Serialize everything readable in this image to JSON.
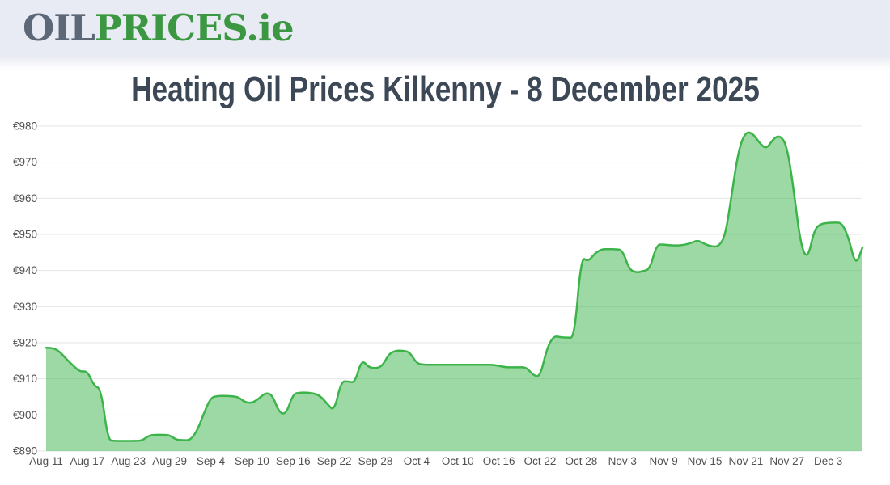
{
  "header": {
    "logo": {
      "oil": "OIL",
      "prices": "PRICES",
      "ie": ".ie"
    }
  },
  "page_title": "Heating Oil Prices Kilkenny - 8 December 2025",
  "chart_data": {
    "type": "area",
    "title": "Heating Oil Prices Kilkenny - 8 December 2025",
    "interval": "daily",
    "start_date": "Aug 11",
    "end_date": "Dec 8",
    "ylim": [
      890,
      980
    ],
    "y_tick_values": [
      890,
      900,
      910,
      920,
      930,
      940,
      950,
      960,
      970,
      980
    ],
    "y_tick_prefix": "€",
    "grid": "horizontal",
    "legend": "none",
    "x_ticks": [
      {
        "label": "Aug 11",
        "day": 0
      },
      {
        "label": "Aug 17",
        "day": 6
      },
      {
        "label": "Aug 23",
        "day": 12
      },
      {
        "label": "Aug 29",
        "day": 18
      },
      {
        "label": "Sep 4",
        "day": 24
      },
      {
        "label": "Sep 10",
        "day": 30
      },
      {
        "label": "Sep 16",
        "day": 36
      },
      {
        "label": "Sep 22",
        "day": 42
      },
      {
        "label": "Sep 28",
        "day": 48
      },
      {
        "label": "Oct 4",
        "day": 54
      },
      {
        "label": "Oct 10",
        "day": 60
      },
      {
        "label": "Oct 16",
        "day": 66
      },
      {
        "label": "Oct 22",
        "day": 72
      },
      {
        "label": "Oct 28",
        "day": 78
      },
      {
        "label": "Nov 3",
        "day": 84
      },
      {
        "label": "Nov 9",
        "day": 90
      },
      {
        "label": "Nov 15",
        "day": 96
      },
      {
        "label": "Nov 21",
        "day": 102
      },
      {
        "label": "Nov 27",
        "day": 108
      },
      {
        "label": "Dec 3",
        "day": 114
      }
    ],
    "values": [
      918.6,
      918.6,
      917.5,
      915.4,
      913.5,
      911.9,
      912.2,
      908.0,
      907.3,
      893.0,
      892.8,
      892.8,
      892.8,
      892.8,
      892.9,
      894.3,
      894.5,
      894.5,
      894.4,
      893.1,
      893.0,
      893.0,
      895.5,
      900.5,
      904.8,
      905.3,
      905.3,
      905.2,
      905.0,
      903.5,
      903.3,
      904.5,
      906.2,
      905.5,
      900.5,
      900.3,
      905.8,
      906.2,
      906.2,
      906.0,
      905.2,
      903.0,
      901.0,
      909.3,
      909.3,
      908.9,
      915.4,
      913.2,
      912.9,
      913.5,
      917.0,
      917.8,
      917.8,
      917.4,
      914.3,
      913.9,
      913.9,
      913.9,
      913.9,
      913.9,
      913.9,
      913.9,
      913.9,
      913.9,
      913.9,
      913.9,
      913.6,
      913.2,
      913.2,
      913.2,
      913.2,
      911.0,
      910.5,
      918.5,
      921.9,
      921.5,
      921.4,
      921.4,
      943.9,
      942.4,
      944.8,
      945.9,
      945.9,
      945.9,
      945.7,
      940.3,
      939.4,
      939.8,
      940.4,
      947.2,
      947.2,
      947.0,
      946.9,
      947.1,
      947.6,
      948.4,
      947.3,
      946.7,
      946.6,
      949.5,
      962.0,
      974.0,
      978.4,
      978.0,
      975.3,
      973.6,
      976.5,
      977.5,
      974.5,
      962.0,
      947.0,
      943.0,
      951.5,
      953.0,
      953.2,
      953.3,
      953.2,
      949.0,
      941.2,
      946.4
    ],
    "colors": {
      "line": "#3cb44a",
      "fill": "rgba(60,180,74,0.5)",
      "grid": "#e6e6e6",
      "tick_text": "#515151"
    }
  }
}
